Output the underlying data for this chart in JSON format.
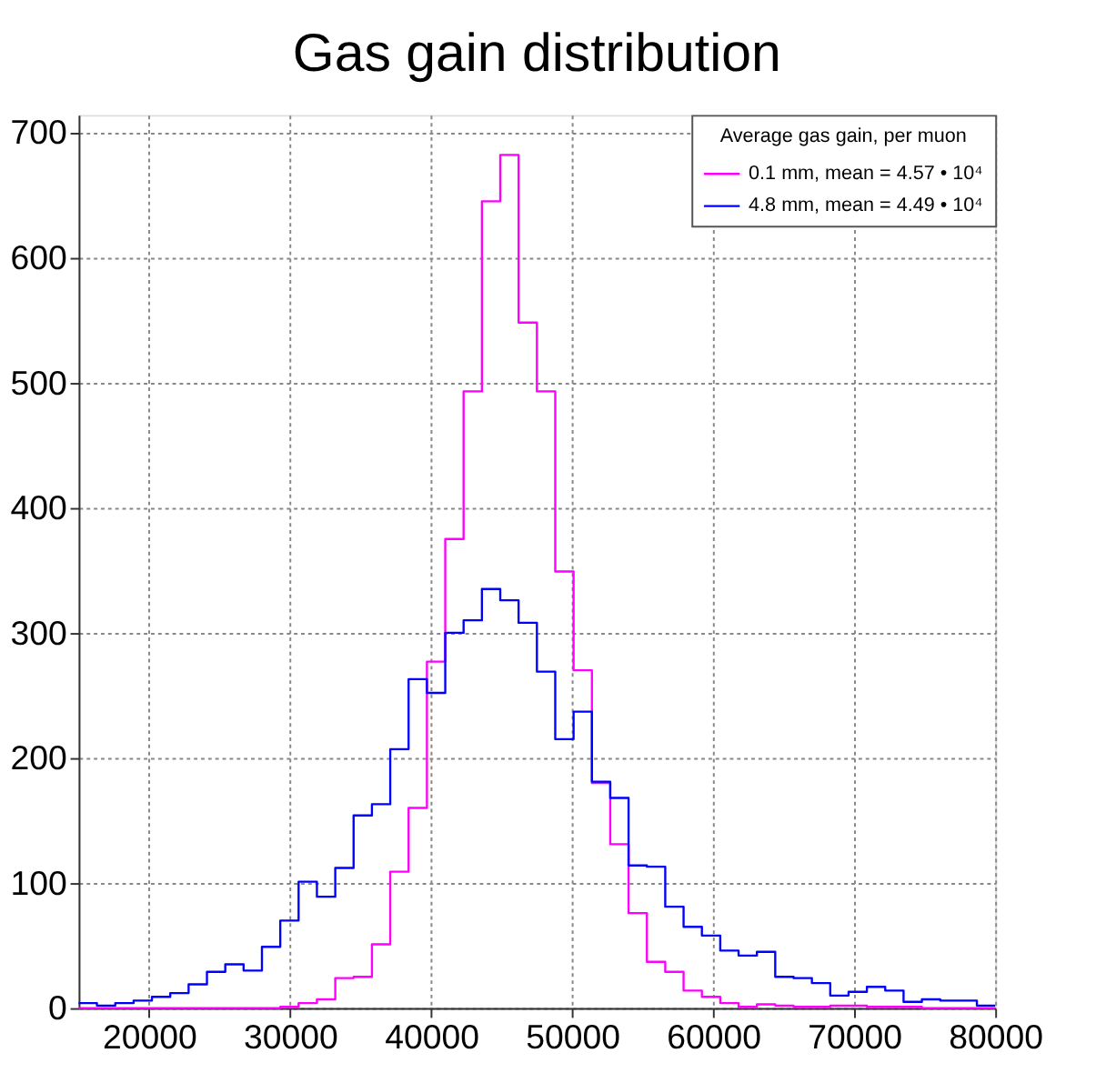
{
  "chart_data": {
    "type": "histogram",
    "title": "Gas gain distribution",
    "legend_title": "Average gas gain, per muon",
    "bins": [
      15000,
      16300,
      17600,
      18900,
      20200,
      21500,
      22800,
      24100,
      25400,
      26700,
      28000,
      29300,
      30600,
      31900,
      33200,
      34500,
      35800,
      37100,
      38400,
      39700,
      41000,
      42300,
      43600,
      44900,
      46200,
      47500,
      48800,
      50100,
      51400,
      52700,
      54000,
      55300,
      56600,
      57900,
      59200,
      60500,
      61800,
      63100,
      64400,
      65700,
      67000,
      68300,
      69600,
      70900,
      72200,
      73500,
      74800,
      76100,
      77400,
      78700,
      80000
    ],
    "series": [
      {
        "name": "0.1 mm, mean = 4.57 • 10⁴",
        "color": "#ff00ff",
        "values": [
          0,
          0,
          0,
          0,
          0,
          0,
          0,
          0,
          0,
          0,
          0,
          1,
          4,
          7,
          24,
          25,
          51,
          109,
          160,
          277,
          375,
          493,
          645,
          682,
          548,
          493,
          349,
          270,
          180,
          131,
          76,
          37,
          29,
          14,
          9,
          4,
          1,
          3,
          2,
          1,
          1,
          2,
          2,
          1,
          1,
          1,
          0,
          0,
          0,
          0
        ]
      },
      {
        "name": "4.8 mm, mean = 4.49 • 10⁴",
        "color": "#0000ff",
        "values": [
          4,
          2,
          4,
          6,
          9,
          12,
          19,
          29,
          35,
          30,
          49,
          70,
          101,
          89,
          112,
          154,
          163,
          207,
          263,
          252,
          300,
          310,
          335,
          326,
          308,
          269,
          215,
          237,
          181,
          168,
          114,
          113,
          81,
          65,
          58,
          46,
          42,
          45,
          25,
          24,
          20,
          10,
          13,
          17,
          14,
          5,
          7,
          6,
          6,
          2
        ]
      }
    ],
    "xlim": [
      15000,
      80000
    ],
    "ylim": [
      0,
      714
    ],
    "xticks": [
      20000,
      30000,
      40000,
      50000,
      60000,
      70000,
      80000
    ],
    "yticks": [
      0,
      100,
      200,
      300,
      400,
      500,
      600,
      700
    ],
    "grid": true,
    "legend": "top right",
    "line_style": "dotted"
  }
}
